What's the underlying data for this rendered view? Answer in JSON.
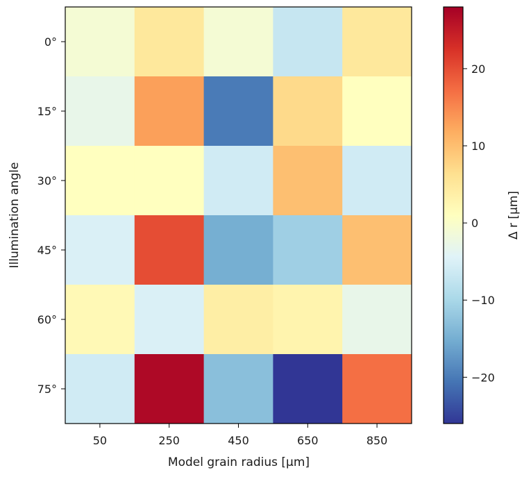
{
  "chart_data": {
    "type": "heatmap",
    "title": "",
    "xlabel": "Model grain radius [μm]",
    "ylabel": "Illumination angle",
    "x_categories": [
      "50",
      "250",
      "450",
      "650",
      "850"
    ],
    "y_categories": [
      "0°",
      "15°",
      "30°",
      "45°",
      "60°",
      "75°"
    ],
    "values": [
      [
        -1,
        5,
        -1,
        -7,
        5
      ],
      [
        -3,
        13,
        -20,
        7,
        1
      ],
      [
        1,
        1,
        -6,
        10,
        -6
      ],
      [
        -5,
        20,
        -15,
        -11,
        10
      ],
      [
        2,
        -5,
        4,
        3,
        -3
      ],
      [
        -6,
        27,
        -13,
        -26,
        17
      ]
    ],
    "colormap": "RdYlBu_r",
    "color_range": [
      -26,
      28
    ],
    "colorbar": {
      "label": "Δ r [μm]",
      "ticks": [
        -20,
        -10,
        0,
        10,
        20
      ],
      "tick_labels": [
        "−20",
        "−10",
        "0",
        "10",
        "20"
      ]
    }
  }
}
